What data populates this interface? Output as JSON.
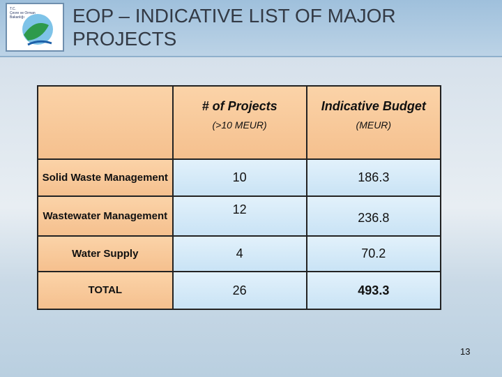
{
  "header": {
    "title": "EOP – INDICATIVE LIST OF MAJOR PROJECTS",
    "logo_lines": [
      "T.C.",
      "Çevre ve Orman",
      "Bakanlığı"
    ]
  },
  "table": {
    "columns": [
      {
        "title": "",
        "subtitle": ""
      },
      {
        "title": "# of Projects",
        "subtitle": "(>10 MEUR)"
      },
      {
        "title": "Indicative Budget",
        "subtitle": "(MEUR)"
      }
    ],
    "rows": [
      [
        "Solid Waste Management",
        "10",
        "186.3"
      ],
      [
        "Wastewater Management",
        "12",
        "236.8"
      ],
      [
        "Water Supply",
        "4",
        "70.2"
      ],
      [
        "TOTAL",
        "26",
        "493.3"
      ]
    ]
  },
  "page_number": "13"
}
